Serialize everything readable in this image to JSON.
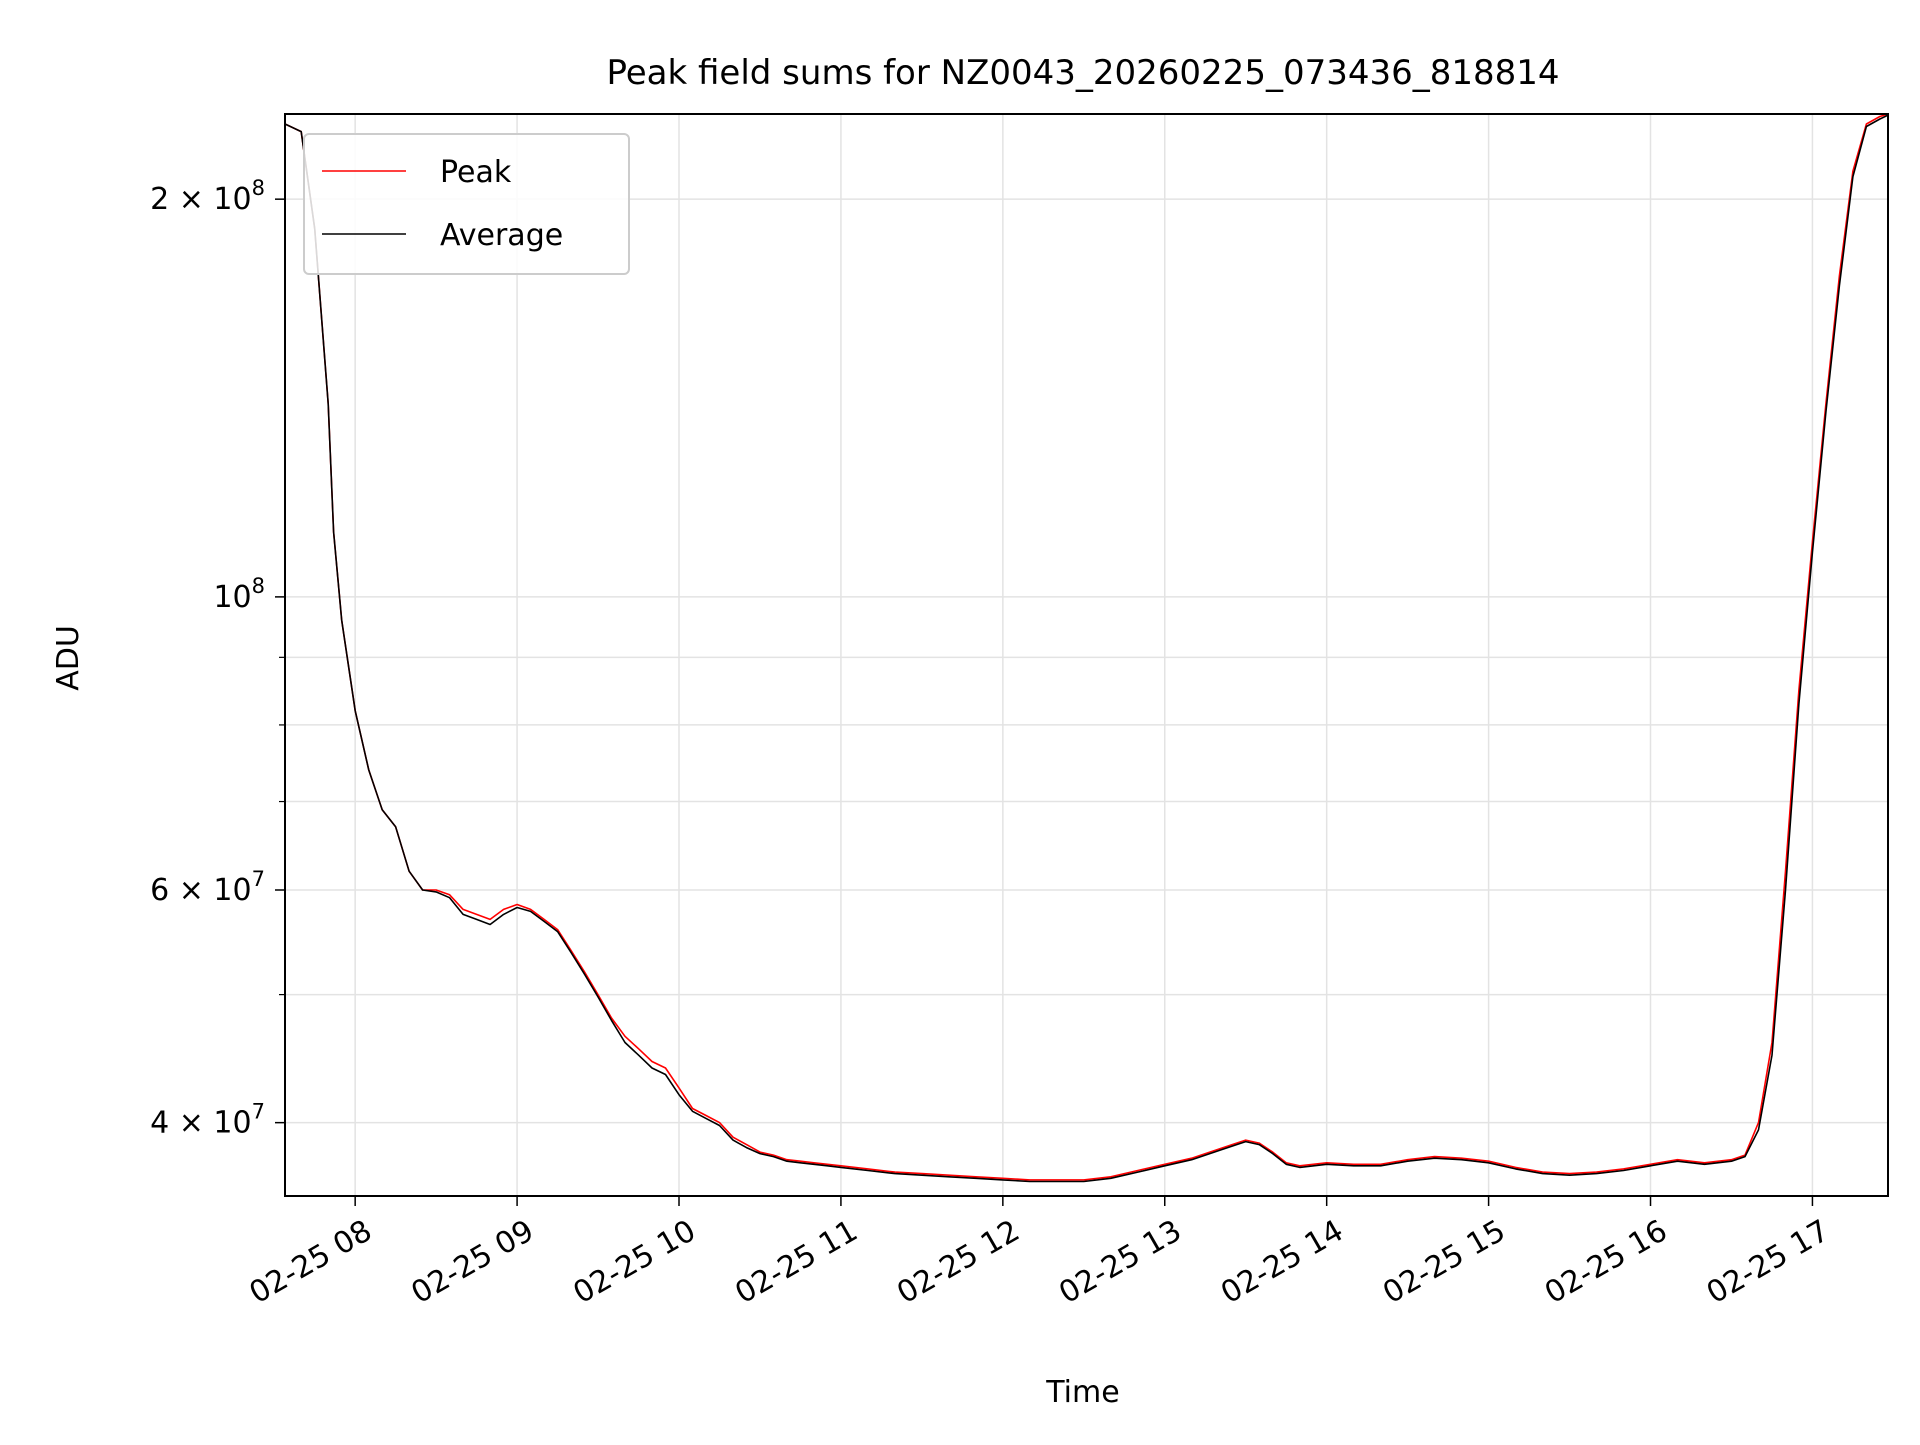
{
  "chart_data": {
    "type": "line",
    "title": "Peak field sums for NZ0043_20260225_073436_818814",
    "xlabel": "Time",
    "ylabel": "ADU",
    "x_start": "2026-02-25 07:34",
    "x_end": "2026-02-25 17:28",
    "xlim": [
      "2026-02-25 07:34",
      "2026-02-25 17:28"
    ],
    "ylim": [
      35200000,
      232000000
    ],
    "y_scale": "log",
    "grid": true,
    "legend_position": "top-left",
    "x_ticks": [
      {
        "value": "2026-02-25 08:00",
        "label": "02-25 08"
      },
      {
        "value": "2026-02-25 09:00",
        "label": "02-25 09"
      },
      {
        "value": "2026-02-25 10:00",
        "label": "02-25 10"
      },
      {
        "value": "2026-02-25 11:00",
        "label": "02-25 11"
      },
      {
        "value": "2026-02-25 12:00",
        "label": "02-25 12"
      },
      {
        "value": "2026-02-25 13:00",
        "label": "02-25 13"
      },
      {
        "value": "2026-02-25 14:00",
        "label": "02-25 14"
      },
      {
        "value": "2026-02-25 15:00",
        "label": "02-25 15"
      },
      {
        "value": "2026-02-25 16:00",
        "label": "02-25 16"
      },
      {
        "value": "2026-02-25 17:00",
        "label": "02-25 17"
      }
    ],
    "y_ticks": [
      {
        "value": 40000000,
        "base": "4 × 10",
        "exp": "7"
      },
      {
        "value": 60000000,
        "base": "6 × 10",
        "exp": "7"
      },
      {
        "value": 100000000,
        "base": "10",
        "exp": "8"
      },
      {
        "value": 200000000,
        "base": "2 × 10",
        "exp": "8"
      }
    ],
    "y_minor_ticks": [
      50000000,
      70000000,
      80000000,
      90000000
    ],
    "series": [
      {
        "name": "Peak",
        "color": "#ff0000",
        "x": [
          "2026-02-25 07:34",
          "2026-02-25 07:40",
          "2026-02-25 07:45",
          "2026-02-25 07:50",
          "2026-02-25 07:52",
          "2026-02-25 07:55",
          "2026-02-25 08:00",
          "2026-02-25 08:05",
          "2026-02-25 08:10",
          "2026-02-25 08:15",
          "2026-02-25 08:20",
          "2026-02-25 08:25",
          "2026-02-25 08:30",
          "2026-02-25 08:35",
          "2026-02-25 08:40",
          "2026-02-25 08:45",
          "2026-02-25 08:50",
          "2026-02-25 08:55",
          "2026-02-25 09:00",
          "2026-02-25 09:05",
          "2026-02-25 09:10",
          "2026-02-25 09:15",
          "2026-02-25 09:20",
          "2026-02-25 09:25",
          "2026-02-25 09:30",
          "2026-02-25 09:35",
          "2026-02-25 09:40",
          "2026-02-25 09:45",
          "2026-02-25 09:50",
          "2026-02-25 09:55",
          "2026-02-25 10:00",
          "2026-02-25 10:05",
          "2026-02-25 10:10",
          "2026-02-25 10:15",
          "2026-02-25 10:20",
          "2026-02-25 10:25",
          "2026-02-25 10:30",
          "2026-02-25 10:35",
          "2026-02-25 10:40",
          "2026-02-25 10:45",
          "2026-02-25 10:50",
          "2026-02-25 10:55",
          "2026-02-25 11:00",
          "2026-02-25 11:10",
          "2026-02-25 11:20",
          "2026-02-25 11:30",
          "2026-02-25 11:40",
          "2026-02-25 11:50",
          "2026-02-25 12:00",
          "2026-02-25 12:10",
          "2026-02-25 12:20",
          "2026-02-25 12:30",
          "2026-02-25 12:40",
          "2026-02-25 12:50",
          "2026-02-25 13:00",
          "2026-02-25 13:10",
          "2026-02-25 13:20",
          "2026-02-25 13:30",
          "2026-02-25 13:35",
          "2026-02-25 13:40",
          "2026-02-25 13:45",
          "2026-02-25 13:50",
          "2026-02-25 14:00",
          "2026-02-25 14:10",
          "2026-02-25 14:20",
          "2026-02-25 14:30",
          "2026-02-25 14:40",
          "2026-02-25 14:50",
          "2026-02-25 15:00",
          "2026-02-25 15:10",
          "2026-02-25 15:20",
          "2026-02-25 15:30",
          "2026-02-25 15:40",
          "2026-02-25 15:50",
          "2026-02-25 16:00",
          "2026-02-25 16:10",
          "2026-02-25 16:20",
          "2026-02-25 16:30",
          "2026-02-25 16:35",
          "2026-02-25 16:40",
          "2026-02-25 16:45",
          "2026-02-25 16:50",
          "2026-02-25 16:55",
          "2026-02-25 17:00",
          "2026-02-25 17:05",
          "2026-02-25 17:10",
          "2026-02-25 17:15",
          "2026-02-25 17:20",
          "2026-02-25 17:25",
          "2026-02-25 17:28"
        ],
        "y": [
          228000000,
          225000000,
          190000000,
          140000000,
          112000000,
          96000000,
          82000000,
          74000000,
          69000000,
          67000000,
          62000000,
          60000000,
          60000000,
          59500000,
          58000000,
          57500000,
          57000000,
          58000000,
          58500000,
          58000000,
          57000000,
          56000000,
          54000000,
          52000000,
          50000000,
          48000000,
          46500000,
          45500000,
          44500000,
          44000000,
          42500000,
          41000000,
          40500000,
          40000000,
          39000000,
          38500000,
          38000000,
          37800000,
          37500000,
          37400000,
          37300000,
          37200000,
          37100000,
          36900000,
          36700000,
          36600000,
          36500000,
          36400000,
          36300000,
          36200000,
          36200000,
          36200000,
          36400000,
          36800000,
          37200000,
          37600000,
          38200000,
          38800000,
          38600000,
          38000000,
          37300000,
          37100000,
          37300000,
          37200000,
          37200000,
          37500000,
          37700000,
          37600000,
          37400000,
          37000000,
          36700000,
          36600000,
          36700000,
          36900000,
          37200000,
          37500000,
          37300000,
          37500000,
          37800000,
          40000000,
          46000000,
          62000000,
          85000000,
          110000000,
          140000000,
          175000000,
          210000000,
          228000000,
          231000000,
          232000000
        ]
      },
      {
        "name": "Average",
        "color": "#000000",
        "x": [
          "2026-02-25 07:34",
          "2026-02-25 07:40",
          "2026-02-25 07:45",
          "2026-02-25 07:50",
          "2026-02-25 07:52",
          "2026-02-25 07:55",
          "2026-02-25 08:00",
          "2026-02-25 08:05",
          "2026-02-25 08:10",
          "2026-02-25 08:15",
          "2026-02-25 08:20",
          "2026-02-25 08:25",
          "2026-02-25 08:30",
          "2026-02-25 08:35",
          "2026-02-25 08:40",
          "2026-02-25 08:45",
          "2026-02-25 08:50",
          "2026-02-25 08:55",
          "2026-02-25 09:00",
          "2026-02-25 09:05",
          "2026-02-25 09:10",
          "2026-02-25 09:15",
          "2026-02-25 09:20",
          "2026-02-25 09:25",
          "2026-02-25 09:30",
          "2026-02-25 09:35",
          "2026-02-25 09:40",
          "2026-02-25 09:45",
          "2026-02-25 09:50",
          "2026-02-25 09:55",
          "2026-02-25 10:00",
          "2026-02-25 10:05",
          "2026-02-25 10:10",
          "2026-02-25 10:15",
          "2026-02-25 10:20",
          "2026-02-25 10:25",
          "2026-02-25 10:30",
          "2026-02-25 10:35",
          "2026-02-25 10:40",
          "2026-02-25 10:45",
          "2026-02-25 10:50",
          "2026-02-25 10:55",
          "2026-02-25 11:00",
          "2026-02-25 11:10",
          "2026-02-25 11:20",
          "2026-02-25 11:30",
          "2026-02-25 11:40",
          "2026-02-25 11:50",
          "2026-02-25 12:00",
          "2026-02-25 12:10",
          "2026-02-25 12:20",
          "2026-02-25 12:30",
          "2026-02-25 12:40",
          "2026-02-25 12:50",
          "2026-02-25 13:00",
          "2026-02-25 13:10",
          "2026-02-25 13:20",
          "2026-02-25 13:30",
          "2026-02-25 13:35",
          "2026-02-25 13:40",
          "2026-02-25 13:45",
          "2026-02-25 13:50",
          "2026-02-25 14:00",
          "2026-02-25 14:10",
          "2026-02-25 14:20",
          "2026-02-25 14:30",
          "2026-02-25 14:40",
          "2026-02-25 14:50",
          "2026-02-25 15:00",
          "2026-02-25 15:10",
          "2026-02-25 15:20",
          "2026-02-25 15:30",
          "2026-02-25 15:40",
          "2026-02-25 15:50",
          "2026-02-25 16:00",
          "2026-02-25 16:10",
          "2026-02-25 16:20",
          "2026-02-25 16:30",
          "2026-02-25 16:35",
          "2026-02-25 16:40",
          "2026-02-25 16:45",
          "2026-02-25 16:50",
          "2026-02-25 16:55",
          "2026-02-25 17:00",
          "2026-02-25 17:05",
          "2026-02-25 17:10",
          "2026-02-25 17:15",
          "2026-02-25 17:20",
          "2026-02-25 17:25",
          "2026-02-25 17:28"
        ],
        "y": [
          228000000,
          225000000,
          190000000,
          140000000,
          112000000,
          96000000,
          82000000,
          74000000,
          69000000,
          67000000,
          62000000,
          60000000,
          59800000,
          59200000,
          57500000,
          57000000,
          56500000,
          57500000,
          58200000,
          57800000,
          56800000,
          55800000,
          53800000,
          51800000,
          49800000,
          47800000,
          46000000,
          45000000,
          44000000,
          43500000,
          42000000,
          40800000,
          40300000,
          39800000,
          38800000,
          38300000,
          37900000,
          37700000,
          37400000,
          37300000,
          37200000,
          37100000,
          37000000,
          36800000,
          36600000,
          36500000,
          36400000,
          36300000,
          36200000,
          36100000,
          36100000,
          36100000,
          36300000,
          36700000,
          37100000,
          37500000,
          38100000,
          38700000,
          38500000,
          37900000,
          37200000,
          37000000,
          37200000,
          37100000,
          37100000,
          37400000,
          37600000,
          37500000,
          37300000,
          36900000,
          36600000,
          36500000,
          36600000,
          36800000,
          37100000,
          37400000,
          37200000,
          37400000,
          37700000,
          39500000,
          45000000,
          60000000,
          83000000,
          108000000,
          138000000,
          172000000,
          208000000,
          227000000,
          230000000,
          231500000
        ]
      }
    ]
  }
}
